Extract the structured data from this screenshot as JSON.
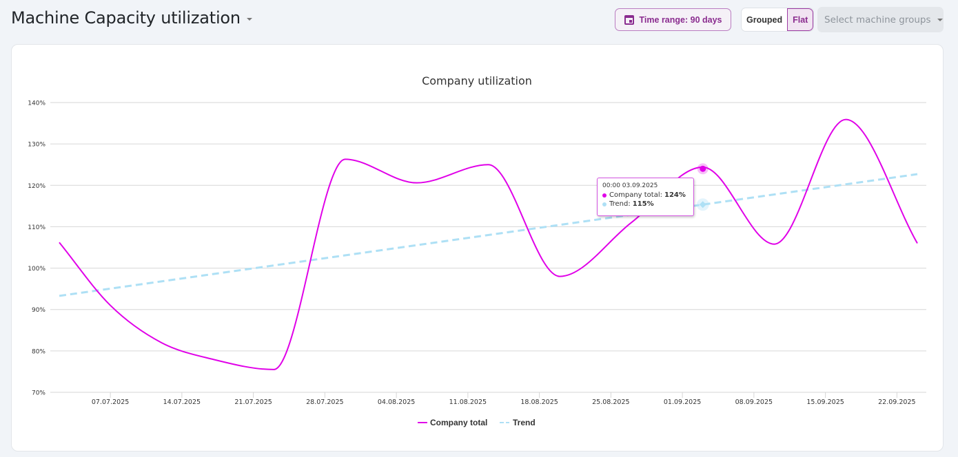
{
  "header": {
    "title": "Machine Capacity utilization",
    "time_range_label": "Time range: 90 days",
    "view_toggle": [
      "Grouped",
      "Flat"
    ],
    "active_view": "Flat",
    "machine_groups_placeholder": "Select machine groups"
  },
  "colors": {
    "accent": "#8a2c8f",
    "company_total": "#e000e8",
    "trend": "#aee0f5"
  },
  "tooltip": {
    "timestamp": "00:00 03.09.2025",
    "company_label": "Company total:",
    "company_value": "124%",
    "trend_label": "Trend:",
    "trend_value": "115%"
  },
  "chart_data": {
    "type": "line",
    "title": "Company utilization",
    "xlabel": "",
    "ylabel": "",
    "ylim": [
      70,
      140
    ],
    "y_ticks": [
      "70%",
      "80%",
      "90%",
      "100%",
      "110%",
      "120%",
      "130%",
      "140%"
    ],
    "y_tick_values": [
      70,
      80,
      90,
      100,
      110,
      120,
      130,
      140
    ],
    "x_ticks": [
      "07.07.2025",
      "14.07.2025",
      "21.07.2025",
      "28.07.2025",
      "04.08.2025",
      "11.08.2025",
      "18.08.2025",
      "25.08.2025",
      "01.09.2025",
      "08.09.2025",
      "15.09.2025",
      "22.09.2025"
    ],
    "x_tick_days": [
      5,
      12,
      19,
      26,
      33,
      40,
      47,
      54,
      61,
      68,
      75,
      82
    ],
    "x_range_days": [
      0,
      84
    ],
    "x_day0": "02.07.2025",
    "grid": true,
    "legend_position": "bottom-center",
    "series": [
      {
        "name": "Company total",
        "style": "solid",
        "points": [
          {
            "day": 0,
            "value": 106.2
          },
          {
            "day": 5,
            "value": 91
          },
          {
            "day": 10,
            "value": 82
          },
          {
            "day": 15,
            "value": 78
          },
          {
            "day": 21,
            "value": 75.5
          },
          {
            "day": 28,
            "value": 126.3
          },
          {
            "day": 35,
            "value": 120.6
          },
          {
            "day": 42,
            "value": 125
          },
          {
            "day": 49,
            "value": 98
          },
          {
            "day": 56,
            "value": 111
          },
          {
            "day": 63,
            "value": 124.4
          },
          {
            "day": 70,
            "value": 105.8
          },
          {
            "day": 77,
            "value": 135.9
          },
          {
            "day": 84,
            "value": 106
          }
        ]
      },
      {
        "name": "Trend",
        "style": "dashed",
        "points": [
          {
            "day": 0,
            "value": 93.3
          },
          {
            "day": 84,
            "value": 122.7
          }
        ]
      }
    ],
    "highlight": {
      "day": 63,
      "company_value": 124,
      "trend_value": 115
    }
  }
}
